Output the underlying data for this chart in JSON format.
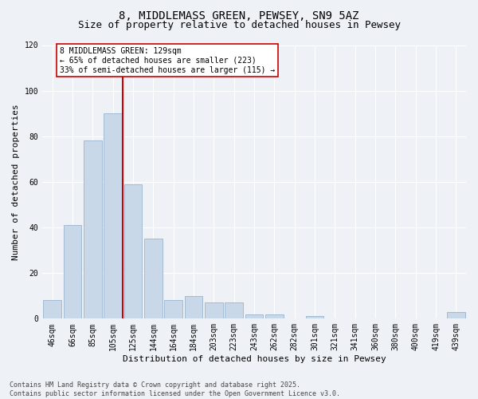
{
  "title": "8, MIDDLEMASS GREEN, PEWSEY, SN9 5AZ",
  "subtitle": "Size of property relative to detached houses in Pewsey",
  "xlabel": "Distribution of detached houses by size in Pewsey",
  "ylabel": "Number of detached properties",
  "bar_color": "#c8d8e8",
  "bar_edgecolor": "#9ab4cc",
  "background_color": "#eef2f7",
  "grid_color": "#ffffff",
  "categories": [
    "46sqm",
    "66sqm",
    "85sqm",
    "105sqm",
    "125sqm",
    "144sqm",
    "164sqm",
    "184sqm",
    "203sqm",
    "223sqm",
    "243sqm",
    "262sqm",
    "282sqm",
    "301sqm",
    "321sqm",
    "341sqm",
    "360sqm",
    "380sqm",
    "400sqm",
    "419sqm",
    "439sqm"
  ],
  "values": [
    8,
    41,
    78,
    90,
    59,
    35,
    8,
    10,
    7,
    7,
    2,
    2,
    0,
    1,
    0,
    0,
    0,
    0,
    0,
    0,
    3
  ],
  "vline_index": 4,
  "vline_color": "#cc0000",
  "annotation_text": "8 MIDDLEMASS GREEN: 129sqm\n← 65% of detached houses are smaller (223)\n33% of semi-detached houses are larger (115) →",
  "annotation_box_facecolor": "#ffffff",
  "annotation_box_edgecolor": "#cc0000",
  "ylim": [
    0,
    120
  ],
  "yticks": [
    0,
    20,
    40,
    60,
    80,
    100,
    120
  ],
  "footer": "Contains HM Land Registry data © Crown copyright and database right 2025.\nContains public sector information licensed under the Open Government Licence v3.0.",
  "title_fontsize": 10,
  "subtitle_fontsize": 9,
  "xlabel_fontsize": 8,
  "ylabel_fontsize": 8,
  "tick_fontsize": 7,
  "annotation_fontsize": 7,
  "footer_fontsize": 6
}
